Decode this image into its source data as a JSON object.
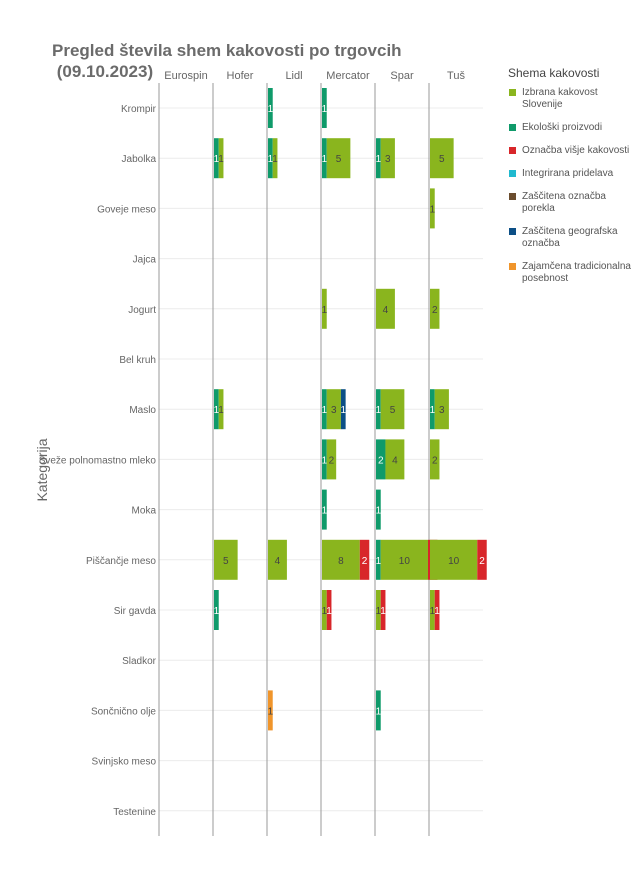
{
  "chart_data": {
    "type": "bar",
    "title": "Pregled števila shem kakovosti po trgovcih\n (09.10.2023)",
    "ylabel": "Kategorija",
    "legend_title": "Shema kakovosti",
    "legend_position": "right",
    "retailers": [
      "Eurospin",
      "Hofer",
      "Lidl",
      "Mercator",
      "Spar",
      "Tuš"
    ],
    "categories": [
      "Krompir",
      "Jabolka",
      "Goveje meso",
      "Jajca",
      "Jogurt",
      "Bel kruh",
      "Maslo",
      "Sveže polnomastno mleko",
      "Moka",
      "Piščančje meso",
      "Sir gavda",
      "Sladkor",
      "Sončnično olje",
      "Svinjsko meso",
      "Testenine"
    ],
    "xlim": [
      0,
      11
    ],
    "series": [
      {
        "name": "Izbrana kakovost Slovenije",
        "color": "#8ab51e"
      },
      {
        "name": "Ekološki proizvodi",
        "color": "#0f9a6a"
      },
      {
        "name": "Označba višje kakovosti",
        "color": "#d8262a"
      },
      {
        "name": "Integrirana pridelava",
        "color": "#20b9cf"
      },
      {
        "name": "Zaščitena označba porekla",
        "color": "#6b4d2e"
      },
      {
        "name": "Zaščitena geografska označba",
        "color": "#0c4f86"
      },
      {
        "name": "Zajamčena tradicionalna posebnost",
        "color": "#f0952b"
      }
    ],
    "cells": [
      {
        "retailer": "Hofer",
        "category": "Jabolka",
        "segments": [
          {
            "s": 1,
            "v": 1
          },
          {
            "s": 0,
            "v": 1
          }
        ]
      },
      {
        "retailer": "Hofer",
        "category": "Maslo",
        "segments": [
          {
            "s": 1,
            "v": 1
          },
          {
            "s": 0,
            "v": 1
          }
        ]
      },
      {
        "retailer": "Hofer",
        "category": "Piščančje meso",
        "segments": [
          {
            "s": 0,
            "v": 5
          }
        ]
      },
      {
        "retailer": "Hofer",
        "category": "Sir gavda",
        "segments": [
          {
            "s": 1,
            "v": 1
          }
        ]
      },
      {
        "retailer": "Lidl",
        "category": "Krompir",
        "segments": [
          {
            "s": 1,
            "v": 1
          }
        ]
      },
      {
        "retailer": "Lidl",
        "category": "Jabolka",
        "segments": [
          {
            "s": 1,
            "v": 1
          },
          {
            "s": 0,
            "v": 1
          }
        ]
      },
      {
        "retailer": "Lidl",
        "category": "Piščančje meso",
        "segments": [
          {
            "s": 0,
            "v": 4
          }
        ]
      },
      {
        "retailer": "Lidl",
        "category": "Sončnično olje",
        "segments": [
          {
            "s": 6,
            "v": 1
          }
        ]
      },
      {
        "retailer": "Mercator",
        "category": "Krompir",
        "segments": [
          {
            "s": 1,
            "v": 1
          }
        ]
      },
      {
        "retailer": "Mercator",
        "category": "Jabolka",
        "segments": [
          {
            "s": 1,
            "v": 1
          },
          {
            "s": 0,
            "v": 5
          }
        ]
      },
      {
        "retailer": "Mercator",
        "category": "Jogurt",
        "segments": [
          {
            "s": 0,
            "v": 1
          }
        ]
      },
      {
        "retailer": "Mercator",
        "category": "Maslo",
        "segments": [
          {
            "s": 1,
            "v": 1
          },
          {
            "s": 0,
            "v": 3
          },
          {
            "s": 5,
            "v": 1
          }
        ]
      },
      {
        "retailer": "Mercator",
        "category": "Sveže polnomastno mleko",
        "segments": [
          {
            "s": 1,
            "v": 1
          },
          {
            "s": 0,
            "v": 2
          }
        ]
      },
      {
        "retailer": "Mercator",
        "category": "Moka",
        "segments": [
          {
            "s": 1,
            "v": 1
          }
        ]
      },
      {
        "retailer": "Mercator",
        "category": "Piščančje meso",
        "segments": [
          {
            "s": 0,
            "v": 8
          },
          {
            "s": 2,
            "v": 2
          }
        ]
      },
      {
        "retailer": "Mercator",
        "category": "Sir gavda",
        "segments": [
          {
            "s": 0,
            "v": 1
          },
          {
            "s": 2,
            "v": 1
          }
        ]
      },
      {
        "retailer": "Spar",
        "category": "Jabolka",
        "segments": [
          {
            "s": 1,
            "v": 1
          },
          {
            "s": 0,
            "v": 3
          }
        ]
      },
      {
        "retailer": "Spar",
        "category": "Jogurt",
        "segments": [
          {
            "s": 0,
            "v": 4
          }
        ]
      },
      {
        "retailer": "Spar",
        "category": "Maslo",
        "segments": [
          {
            "s": 1,
            "v": 1
          },
          {
            "s": 0,
            "v": 5
          }
        ]
      },
      {
        "retailer": "Spar",
        "category": "Sveže polnomastno mleko",
        "segments": [
          {
            "s": 1,
            "v": 2
          },
          {
            "s": 0,
            "v": 4
          }
        ]
      },
      {
        "retailer": "Spar",
        "category": "Moka",
        "segments": [
          {
            "s": 1,
            "v": 1
          }
        ]
      },
      {
        "retailer": "Spar",
        "category": "Piščančje meso",
        "segments": [
          {
            "s": 1,
            "v": 1
          },
          {
            "s": 0,
            "v": 10
          },
          {
            "s": 2,
            "v": 2
          }
        ]
      },
      {
        "retailer": "Spar",
        "category": "Sir gavda",
        "segments": [
          {
            "s": 0,
            "v": 1
          },
          {
            "s": 2,
            "v": 1
          }
        ]
      },
      {
        "retailer": "Spar",
        "category": "Sončnično olje",
        "segments": [
          {
            "s": 1,
            "v": 1
          }
        ]
      },
      {
        "retailer": "Tuš",
        "category": "Jabolka",
        "segments": [
          {
            "s": 0,
            "v": 5
          }
        ]
      },
      {
        "retailer": "Tuš",
        "category": "Goveje meso",
        "segments": [
          {
            "s": 0,
            "v": 1
          }
        ]
      },
      {
        "retailer": "Tuš",
        "category": "Jogurt",
        "segments": [
          {
            "s": 0,
            "v": 2
          }
        ]
      },
      {
        "retailer": "Tuš",
        "category": "Maslo",
        "segments": [
          {
            "s": 1,
            "v": 1
          },
          {
            "s": 0,
            "v": 3
          }
        ]
      },
      {
        "retailer": "Tuš",
        "category": "Sveže polnomastno mleko",
        "segments": [
          {
            "s": 0,
            "v": 2
          }
        ]
      },
      {
        "retailer": "Tuš",
        "category": "Piščančje meso",
        "segments": [
          {
            "s": 0,
            "v": 10
          },
          {
            "s": 2,
            "v": 2
          }
        ]
      },
      {
        "retailer": "Tuš",
        "category": "Sir gavda",
        "segments": [
          {
            "s": 0,
            "v": 1
          },
          {
            "s": 2,
            "v": 1
          }
        ]
      }
    ]
  }
}
